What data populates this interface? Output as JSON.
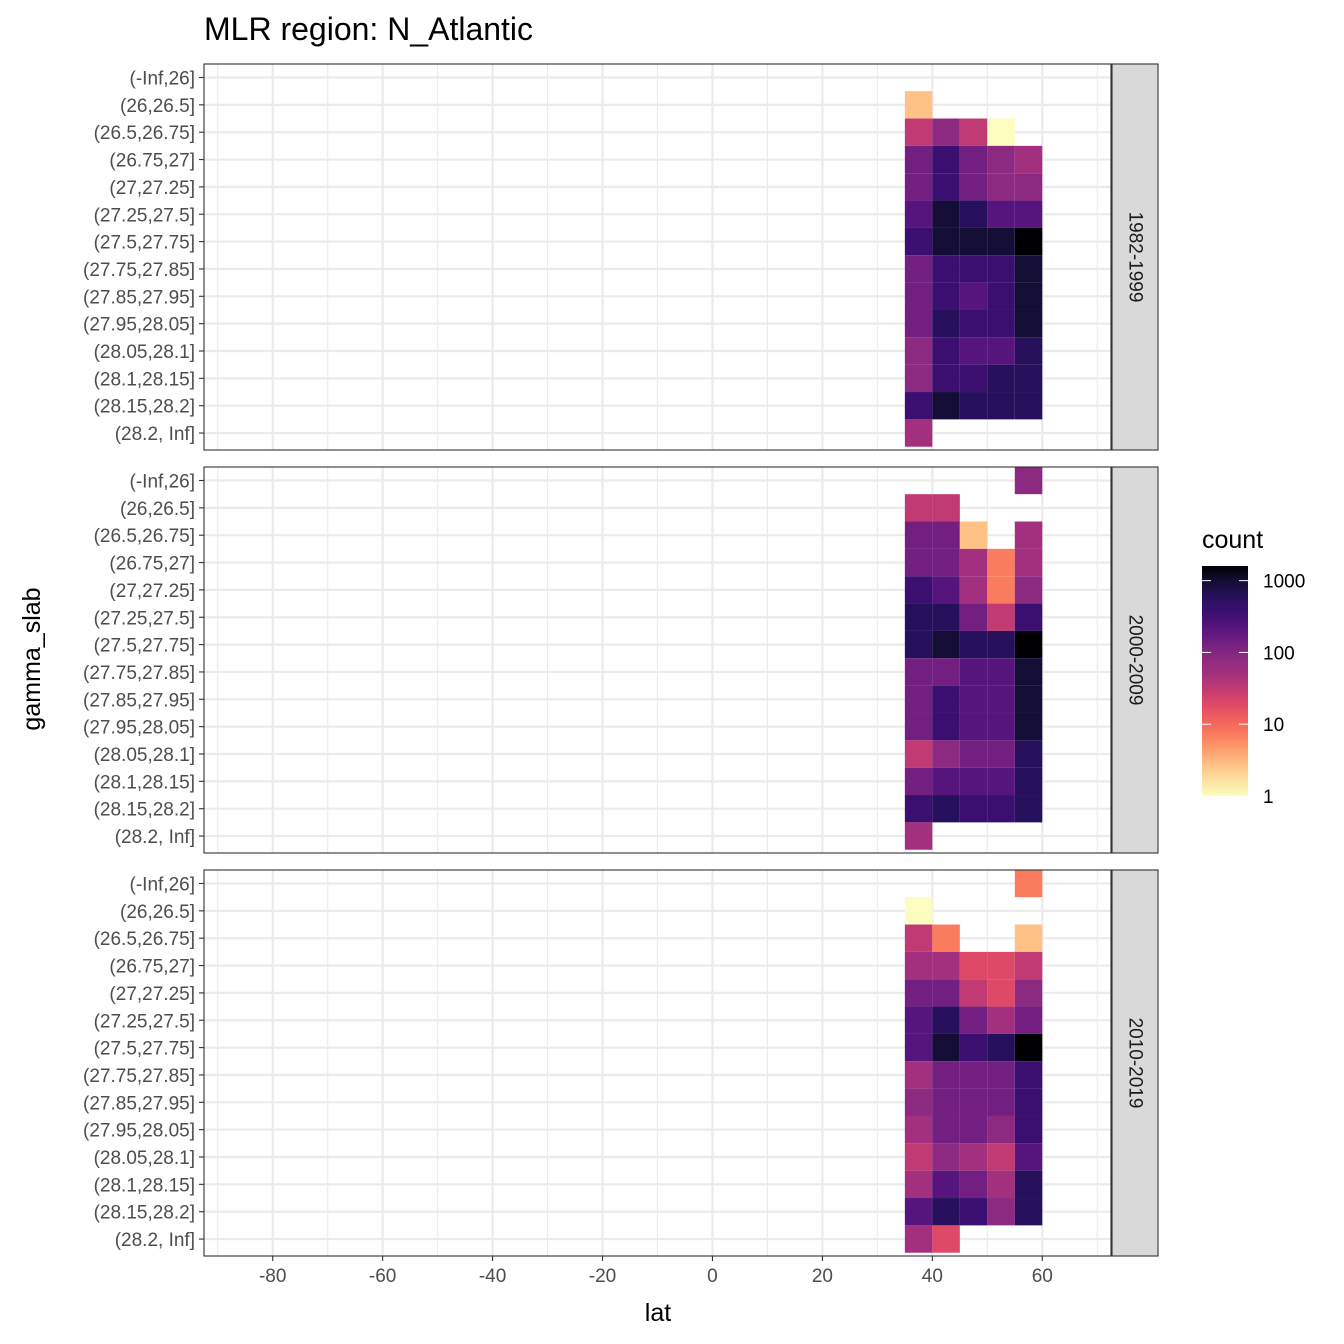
{
  "chart_data": {
    "type": "heatmap",
    "title": "MLR region:  N_Atlantic",
    "xlabel": "lat",
    "ylabel": "gamma_slab",
    "xlim": [
      -92.5,
      72.5
    ],
    "x_ticks": [
      -80,
      -60,
      -40,
      -20,
      0,
      20,
      40,
      60
    ],
    "x_tick_labels": [
      "-80",
      "-60",
      "-40",
      "-20",
      "0",
      "20",
      "40",
      "60"
    ],
    "grid": true,
    "y_categories": [
      "(-Inf,26]",
      "(26,26.5]",
      "(26.5,26.75]",
      "(26.75,27]",
      "(27,27.25]",
      "(27.25,27.5]",
      "(27.5,27.75]",
      "(27.75,27.85]",
      "(27.85,27.95]",
      "(27.95,28.05]",
      "(28.05,28.1]",
      "(28.1,28.15]",
      "(28.15,28.2]",
      "(28.2, Inf]"
    ],
    "lat_bins": [
      37.5,
      42.5,
      47.5,
      52.5,
      57.5
    ],
    "bin_width": 5,
    "value_scale": "log10",
    "fill_note": "cells give count; null = no data",
    "legend": {
      "title": "count",
      "position": "right",
      "breaks": [
        1,
        10,
        100,
        1000
      ],
      "break_labels": [
        "1",
        "10",
        "100",
        "1000"
      ],
      "limits": [
        1,
        1600
      ],
      "palette": [
        "#FCFDBF",
        "#FDE2A2",
        "#FEC287",
        "#FE9F6D",
        "#FA7C5E",
        "#F1605D",
        "#DE4968",
        "#C13A74",
        "#A3307E",
        "#8C2981",
        "#721F81",
        "#56147D",
        "#3B0F70",
        "#26105C",
        "#140E36",
        "#000004"
      ]
    },
    "facets": [
      {
        "label": "1982-1999",
        "cells": [
          [
            null,
            null,
            null,
            null,
            null
          ],
          [
            3,
            null,
            null,
            null,
            null
          ],
          [
            30,
            100,
            25,
            1,
            null
          ],
          [
            120,
            400,
            150,
            80,
            60
          ],
          [
            130,
            400,
            160,
            70,
            80
          ],
          [
            200,
            900,
            500,
            180,
            220
          ],
          [
            300,
            1200,
            1000,
            900,
            1600
          ],
          [
            150,
            400,
            350,
            400,
            800
          ],
          [
            150,
            400,
            250,
            400,
            800
          ],
          [
            160,
            500,
            350,
            400,
            800
          ],
          [
            100,
            300,
            200,
            250,
            500
          ],
          [
            100,
            300,
            300,
            500,
            700
          ],
          [
            400,
            1000,
            600,
            600,
            600
          ],
          [
            50,
            null,
            null,
            null,
            null
          ]
        ]
      },
      {
        "label": "2000-2009",
        "cells": [
          [
            null,
            null,
            null,
            null,
            70
          ],
          [
            25,
            25,
            null,
            null,
            null
          ],
          [
            150,
            130,
            3,
            null,
            40
          ],
          [
            130,
            150,
            60,
            6,
            50
          ],
          [
            300,
            260,
            40,
            6,
            100
          ],
          [
            600,
            700,
            120,
            30,
            400
          ],
          [
            700,
            1100,
            700,
            600,
            1600
          ],
          [
            150,
            160,
            250,
            250,
            1000
          ],
          [
            150,
            300,
            200,
            220,
            1000
          ],
          [
            150,
            400,
            200,
            240,
            1000
          ],
          [
            35,
            100,
            130,
            110,
            500
          ],
          [
            130,
            180,
            200,
            250,
            700
          ],
          [
            400,
            600,
            450,
            300,
            700
          ],
          [
            50,
            null,
            null,
            null,
            null
          ]
        ]
      },
      {
        "label": "2010-2019",
        "cells": [
          [
            null,
            null,
            null,
            null,
            7
          ],
          [
            1,
            null,
            null,
            null,
            null
          ],
          [
            30,
            8,
            null,
            null,
            3
          ],
          [
            60,
            60,
            20,
            20,
            30
          ],
          [
            120,
            120,
            30,
            20,
            70
          ],
          [
            200,
            500,
            130,
            50,
            170
          ],
          [
            200,
            800,
            400,
            500,
            1300
          ],
          [
            50,
            130,
            130,
            130,
            400
          ],
          [
            70,
            160,
            110,
            110,
            400
          ],
          [
            50,
            150,
            110,
            70,
            400
          ],
          [
            35,
            100,
            60,
            25,
            220
          ],
          [
            50,
            180,
            110,
            60,
            500
          ],
          [
            250,
            600,
            300,
            100,
            600
          ],
          [
            40,
            15,
            null,
            null,
            null
          ]
        ]
      }
    ]
  }
}
